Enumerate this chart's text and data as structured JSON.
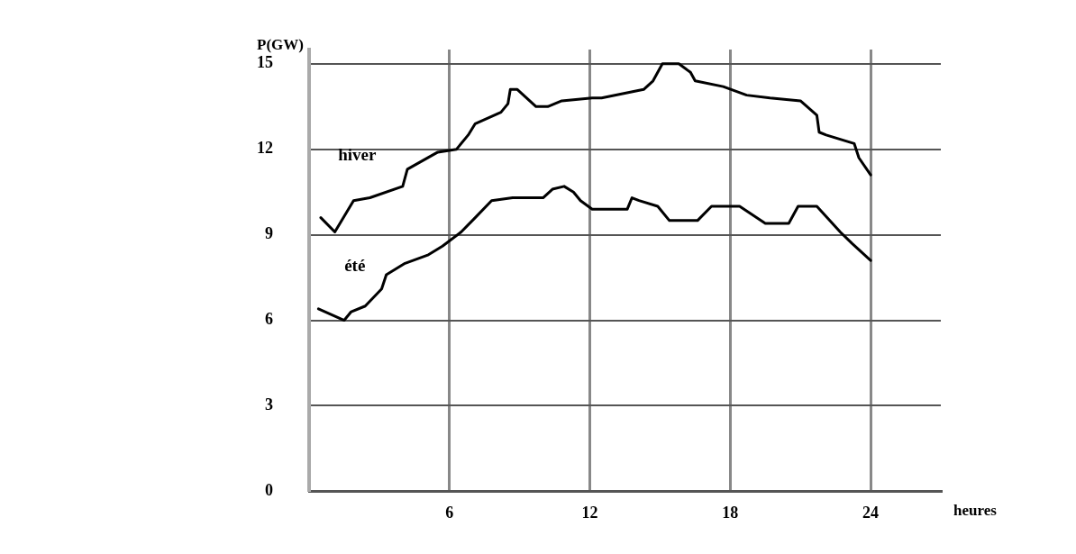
{
  "chart_data": {
    "type": "line",
    "xlabel": "heures",
    "ylabel": "P(GW)",
    "xlim": [
      0,
      27
    ],
    "ylim": [
      0,
      15.5
    ],
    "xticks": [
      6,
      12,
      18,
      24
    ],
    "yticks": [
      0,
      3,
      6,
      9,
      12,
      15
    ],
    "grid": true,
    "legend": false,
    "marker": "none",
    "line_style": "solid",
    "series": [
      {
        "name": "hiver",
        "color": "#000000",
        "x": [
          0.5,
          1.1,
          1.9,
          2.6,
          4.0,
          4.2,
          5.5,
          6.3,
          6.8,
          7.1,
          8.2,
          8.5,
          8.6,
          8.9,
          9.7,
          10.2,
          10.8,
          12.1,
          12.5,
          14.3,
          14.7,
          15.1,
          15.8,
          16.3,
          16.5,
          17.7,
          18.7,
          19.7,
          21.0,
          21.7,
          21.8,
          22.1,
          23.3,
          23.5,
          24.0
        ],
        "values": [
          9.6,
          9.1,
          10.2,
          10.3,
          10.7,
          11.3,
          11.9,
          12.0,
          12.5,
          12.9,
          13.3,
          13.6,
          14.1,
          14.1,
          13.5,
          13.5,
          13.7,
          13.8,
          13.8,
          14.1,
          14.4,
          15.0,
          15.0,
          14.7,
          14.4,
          14.2,
          13.9,
          13.8,
          13.7,
          13.2,
          12.6,
          12.5,
          12.2,
          11.7,
          11.1
        ]
      },
      {
        "name": "été",
        "color": "#000000",
        "x": [
          0.4,
          1.5,
          1.8,
          2.4,
          3.1,
          3.3,
          4.1,
          5.1,
          5.7,
          6.5,
          7.1,
          7.8,
          8.7,
          10.0,
          10.4,
          10.9,
          11.3,
          11.6,
          12.1,
          13.6,
          13.8,
          14.1,
          14.9,
          15.4,
          16.6,
          17.2,
          18.4,
          19.5,
          20.5,
          20.9,
          21.7,
          22.7,
          23.2,
          24.0
        ],
        "values": [
          6.4,
          6.0,
          6.3,
          6.5,
          7.1,
          7.6,
          8.0,
          8.3,
          8.6,
          9.1,
          9.6,
          10.2,
          10.3,
          10.3,
          10.6,
          10.7,
          10.5,
          10.2,
          9.9,
          9.9,
          10.3,
          10.2,
          10.0,
          9.5,
          9.5,
          10.0,
          10.0,
          9.4,
          9.4,
          10.0,
          10.0,
          9.1,
          8.7,
          8.1
        ]
      }
    ]
  }
}
